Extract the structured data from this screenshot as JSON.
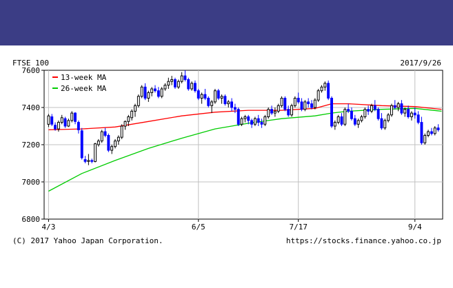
{
  "header": {
    "banner_color": "#3b3d85"
  },
  "chart_data": {
    "type": "candlestick",
    "title": "FTSE 100",
    "date": "2017/9/26",
    "ylim": [
      6800,
      7600
    ],
    "y_ticks": [
      6800,
      7000,
      7200,
      7400,
      7600
    ],
    "x_tick_labels": [
      {
        "label": "4/3",
        "index": 0
      },
      {
        "label": "6/5",
        "index": 45
      },
      {
        "label": "7/17",
        "index": 75
      },
      {
        "label": "9/4",
        "index": 110
      }
    ],
    "grid": true,
    "legend_position": "top-left",
    "colors": {
      "up": "#000000",
      "down": "#0000ff",
      "ma13": "#ff0000",
      "ma26": "#00cc00",
      "grid": "#c0c0c0"
    },
    "legend": [
      {
        "name": "13-week MA",
        "color": "#ff0000"
      },
      {
        "name": "26-week MA",
        "color": "#00cc00"
      }
    ],
    "ohlc": [
      [
        7310,
        7365,
        7295,
        7355
      ],
      [
        7350,
        7365,
        7300,
        7310
      ],
      [
        7305,
        7320,
        7275,
        7285
      ],
      [
        7285,
        7330,
        7270,
        7320
      ],
      [
        7320,
        7360,
        7310,
        7345
      ],
      [
        7340,
        7350,
        7290,
        7300
      ],
      [
        7300,
        7340,
        7295,
        7330
      ],
      [
        7330,
        7380,
        7320,
        7370
      ],
      [
        7370,
        7375,
        7310,
        7325
      ],
      [
        7320,
        7330,
        7260,
        7280
      ],
      [
        7275,
        7290,
        7120,
        7130
      ],
      [
        7120,
        7140,
        7100,
        7110
      ],
      [
        7110,
        7150,
        7090,
        7115
      ],
      [
        7115,
        7125,
        7100,
        7110
      ],
      [
        7110,
        7210,
        7105,
        7205
      ],
      [
        7200,
        7230,
        7190,
        7220
      ],
      [
        7220,
        7280,
        7210,
        7270
      ],
      [
        7270,
        7290,
        7240,
        7250
      ],
      [
        7250,
        7260,
        7160,
        7170
      ],
      [
        7170,
        7200,
        7150,
        7190
      ],
      [
        7190,
        7230,
        7180,
        7220
      ],
      [
        7220,
        7250,
        7200,
        7240
      ],
      [
        7240,
        7310,
        7230,
        7300
      ],
      [
        7300,
        7330,
        7280,
        7325
      ],
      [
        7325,
        7360,
        7300,
        7350
      ],
      [
        7345,
        7390,
        7330,
        7380
      ],
      [
        7380,
        7420,
        7350,
        7410
      ],
      [
        7410,
        7470,
        7400,
        7460
      ],
      [
        7460,
        7520,
        7450,
        7510
      ],
      [
        7510,
        7530,
        7440,
        7450
      ],
      [
        7450,
        7490,
        7430,
        7480
      ],
      [
        7480,
        7510,
        7460,
        7500
      ],
      [
        7500,
        7520,
        7480,
        7490
      ],
      [
        7490,
        7510,
        7450,
        7460
      ],
      [
        7460,
        7510,
        7450,
        7500
      ],
      [
        7500,
        7530,
        7490,
        7520
      ],
      [
        7520,
        7560,
        7500,
        7540
      ],
      [
        7540,
        7570,
        7520,
        7550
      ],
      [
        7550,
        7560,
        7500,
        7510
      ],
      [
        7510,
        7550,
        7500,
        7540
      ],
      [
        7540,
        7590,
        7530,
        7570
      ],
      [
        7570,
        7600,
        7540,
        7550
      ],
      [
        7550,
        7560,
        7490,
        7500
      ],
      [
        7500,
        7540,
        7490,
        7530
      ],
      [
        7530,
        7545,
        7480,
        7490
      ],
      [
        7490,
        7500,
        7440,
        7450
      ],
      [
        7450,
        7480,
        7420,
        7470
      ],
      [
        7470,
        7500,
        7440,
        7450
      ],
      [
        7450,
        7460,
        7400,
        7410
      ],
      [
        7410,
        7440,
        7370,
        7430
      ],
      [
        7430,
        7500,
        7420,
        7490
      ],
      [
        7490,
        7500,
        7440,
        7450
      ],
      [
        7450,
        7470,
        7420,
        7460
      ],
      [
        7460,
        7470,
        7410,
        7420
      ],
      [
        7420,
        7440,
        7400,
        7430
      ],
      [
        7430,
        7450,
        7380,
        7400
      ],
      [
        7400,
        7420,
        7370,
        7390
      ],
      [
        7390,
        7400,
        7300,
        7310
      ],
      [
        7310,
        7350,
        7300,
        7340
      ],
      [
        7340,
        7360,
        7320,
        7350
      ],
      [
        7350,
        7360,
        7310,
        7330
      ],
      [
        7330,
        7340,
        7290,
        7310
      ],
      [
        7310,
        7350,
        7300,
        7340
      ],
      [
        7340,
        7360,
        7300,
        7320
      ],
      [
        7320,
        7340,
        7290,
        7310
      ],
      [
        7310,
        7360,
        7300,
        7350
      ],
      [
        7350,
        7400,
        7340,
        7390
      ],
      [
        7390,
        7410,
        7360,
        7370
      ],
      [
        7370,
        7400,
        7350,
        7380
      ],
      [
        7380,
        7420,
        7370,
        7410
      ],
      [
        7410,
        7460,
        7400,
        7450
      ],
      [
        7450,
        7460,
        7380,
        7390
      ],
      [
        7390,
        7410,
        7350,
        7360
      ],
      [
        7360,
        7420,
        7350,
        7410
      ],
      [
        7410,
        7460,
        7400,
        7450
      ],
      [
        7450,
        7480,
        7420,
        7430
      ],
      [
        7430,
        7450,
        7380,
        7390
      ],
      [
        7390,
        7440,
        7380,
        7430
      ],
      [
        7430,
        7450,
        7400,
        7420
      ],
      [
        7420,
        7440,
        7390,
        7400
      ],
      [
        7400,
        7450,
        7390,
        7440
      ],
      [
        7440,
        7500,
        7430,
        7490
      ],
      [
        7490,
        7520,
        7480,
        7510
      ],
      [
        7510,
        7540,
        7490,
        7530
      ],
      [
        7530,
        7545,
        7440,
        7450
      ],
      [
        7450,
        7460,
        7290,
        7300
      ],
      [
        7300,
        7330,
        7280,
        7320
      ],
      [
        7320,
        7360,
        7310,
        7350
      ],
      [
        7350,
        7370,
        7300,
        7310
      ],
      [
        7310,
        7400,
        7300,
        7390
      ],
      [
        7390,
        7420,
        7370,
        7380
      ],
      [
        7380,
        7400,
        7330,
        7340
      ],
      [
        7340,
        7360,
        7300,
        7310
      ],
      [
        7310,
        7340,
        7290,
        7330
      ],
      [
        7330,
        7360,
        7320,
        7350
      ],
      [
        7350,
        7400,
        7340,
        7390
      ],
      [
        7390,
        7410,
        7360,
        7380
      ],
      [
        7380,
        7420,
        7370,
        7410
      ],
      [
        7410,
        7440,
        7380,
        7390
      ],
      [
        7390,
        7400,
        7330,
        7340
      ],
      [
        7340,
        7370,
        7280,
        7290
      ],
      [
        7290,
        7340,
        7280,
        7330
      ],
      [
        7330,
        7370,
        7320,
        7360
      ],
      [
        7360,
        7420,
        7350,
        7410
      ],
      [
        7410,
        7440,
        7390,
        7400
      ],
      [
        7400,
        7430,
        7380,
        7420
      ],
      [
        7420,
        7440,
        7360,
        7370
      ],
      [
        7370,
        7400,
        7350,
        7390
      ],
      [
        7390,
        7410,
        7340,
        7350
      ],
      [
        7350,
        7380,
        7330,
        7370
      ],
      [
        7370,
        7400,
        7340,
        7360
      ],
      [
        7360,
        7380,
        7310,
        7320
      ],
      [
        7320,
        7350,
        7200,
        7210
      ],
      [
        7210,
        7260,
        7200,
        7250
      ],
      [
        7250,
        7280,
        7240,
        7270
      ],
      [
        7270,
        7290,
        7250,
        7260
      ],
      [
        7260,
        7300,
        7250,
        7290
      ],
      [
        7290,
        7310,
        7270,
        7280
      ]
    ],
    "ma13": [
      [
        0,
        7280
      ],
      [
        10,
        7285
      ],
      [
        20,
        7295
      ],
      [
        30,
        7325
      ],
      [
        40,
        7355
      ],
      [
        50,
        7375
      ],
      [
        60,
        7385
      ],
      [
        70,
        7385
      ],
      [
        80,
        7395
      ],
      [
        85,
        7420
      ],
      [
        90,
        7420
      ],
      [
        100,
        7410
      ],
      [
        110,
        7405
      ],
      [
        118,
        7390
      ]
    ],
    "ma26": [
      [
        0,
        6950
      ],
      [
        10,
        7045
      ],
      [
        20,
        7115
      ],
      [
        30,
        7180
      ],
      [
        40,
        7235
      ],
      [
        50,
        7285
      ],
      [
        60,
        7315
      ],
      [
        70,
        7340
      ],
      [
        80,
        7355
      ],
      [
        85,
        7370
      ],
      [
        90,
        7380
      ],
      [
        100,
        7390
      ],
      [
        110,
        7395
      ],
      [
        118,
        7380
      ]
    ],
    "credit_left": "(C) 2017 Yahoo Japan Corporation.",
    "credit_right": "https://stocks.finance.yahoo.co.jp"
  }
}
